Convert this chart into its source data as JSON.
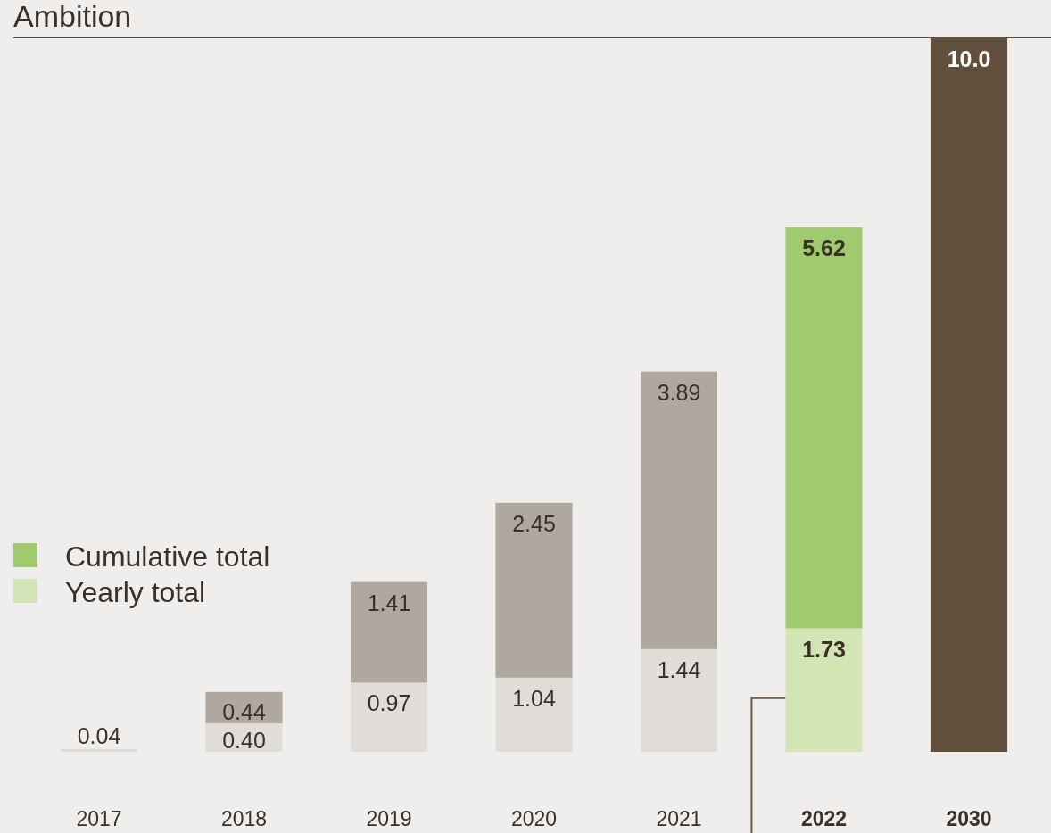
{
  "chart_data": {
    "type": "bar",
    "title": "Ambition",
    "categories": [
      "2017",
      "2018",
      "2019",
      "2020",
      "2021",
      "2022",
      "2030"
    ],
    "stacked": true,
    "legend": "left",
    "series": [
      {
        "name": "Yearly total",
        "color": "#d1e5b5",
        "colors": [
          "#e0ddd8",
          "#e0ddd8",
          "#e0ddd8",
          "#e0ddd8",
          "#e0ddd8",
          "#d1e5b5",
          null
        ],
        "values": [
          0.04,
          0.4,
          0.97,
          1.04,
          1.44,
          1.73,
          null
        ],
        "value_labels": [
          "0.04",
          "0.40",
          "0.97",
          "1.04",
          "1.44",
          "1.73",
          null
        ]
      },
      {
        "name": "Cumulative total",
        "color": "#a0ca6e",
        "colors": [
          "#b0a89e",
          "#b0a89e",
          "#b0a89e",
          "#b0a89e",
          "#b0a89e",
          "#a0ca6e",
          "#614f3b"
        ],
        "values": [
          null,
          0.44,
          1.41,
          2.45,
          3.89,
          5.62,
          10.0
        ],
        "value_labels": [
          null,
          "0.44",
          "1.41",
          "2.45",
          "3.89",
          "5.62",
          "10.0"
        ]
      }
    ]
  }
}
